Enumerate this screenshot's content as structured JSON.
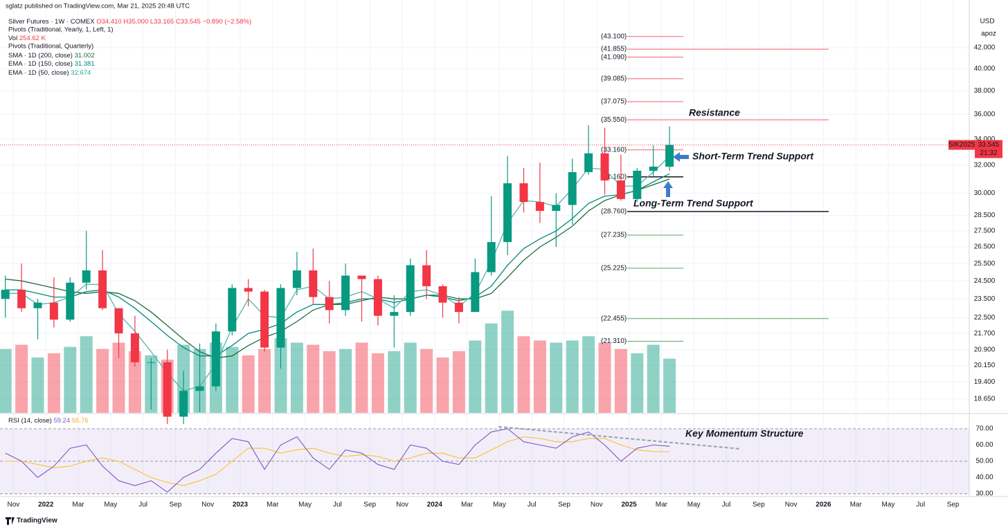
{
  "header": {
    "publisher": "sglatz published on TradingView.com, Mar 21, 2025 20:48 UTC",
    "symbol": "Silver Futures · 1W · COMEX",
    "ohlc_text": "O34.410 H35.000 L33.165 C33.545 −0.890 (−2.58%)",
    "pivots_yearly": "Pivots (Traditional, Yearly, 1, Left, 1)",
    "vol": "Vol",
    "vol_value": "254.62 K",
    "pivots_quarterly": "Pivots (Traditional, Quarterly)",
    "currency": "USD",
    "user": "apoz",
    "footer": "TradingView"
  },
  "chart_data": {
    "type": "candlestick",
    "log_scale": true,
    "grid": true,
    "up_color": "#089981",
    "down_color": "#f23645",
    "x": [
      "2021-10",
      "2021-11",
      "2021-12",
      "2022-01",
      "2022-02",
      "2022-03",
      "2022-04",
      "2022-05",
      "2022-06",
      "2022-07",
      "2022-08",
      "2022-09",
      "2022-10",
      "2022-11",
      "2022-12",
      "2023-01",
      "2023-02",
      "2023-03",
      "2023-04",
      "2023-05",
      "2023-06",
      "2023-07",
      "2023-08",
      "2023-09",
      "2023-10",
      "2023-11",
      "2023-12",
      "2024-01",
      "2024-02",
      "2024-03",
      "2024-04",
      "2024-05",
      "2024-06",
      "2024-07",
      "2024-08",
      "2024-09",
      "2024-10",
      "2024-11",
      "2024-12",
      "2025-01",
      "2025-02",
      "2025-03"
    ],
    "ohlc": [
      [
        23.5,
        24.8,
        22.5,
        24.0
      ],
      [
        24.0,
        25.5,
        22.8,
        23.0
      ],
      [
        23.0,
        23.5,
        21.4,
        23.3
      ],
      [
        23.3,
        24.7,
        22.0,
        22.4
      ],
      [
        22.4,
        24.7,
        22.3,
        24.4
      ],
      [
        24.4,
        27.5,
        24.0,
        25.1
      ],
      [
        25.1,
        26.3,
        22.9,
        23.0
      ],
      [
        23.0,
        23.0,
        20.5,
        21.7
      ],
      [
        21.7,
        22.6,
        20.1,
        20.3
      ],
      [
        20.3,
        20.5,
        18.2,
        20.3
      ],
      [
        20.3,
        20.9,
        17.6,
        17.9
      ],
      [
        17.9,
        19.9,
        17.6,
        19.0
      ],
      [
        19.0,
        21.2,
        18.1,
        19.2
      ],
      [
        19.2,
        22.2,
        19.0,
        21.8
      ],
      [
        21.8,
        24.3,
        21.6,
        24.1
      ],
      [
        24.1,
        24.6,
        23.1,
        23.9
      ],
      [
        23.9,
        24.0,
        20.8,
        21.0
      ],
      [
        21.0,
        24.3,
        20.0,
        24.1
      ],
      [
        24.1,
        26.2,
        23.7,
        25.1
      ],
      [
        25.1,
        26.4,
        23.2,
        23.6
      ],
      [
        23.6,
        24.5,
        22.2,
        22.9
      ],
      [
        22.9,
        25.5,
        22.6,
        24.8
      ],
      [
        24.8,
        24.8,
        22.3,
        24.6
      ],
      [
        24.6,
        24.8,
        22.1,
        22.6
      ],
      [
        22.6,
        23.7,
        21.0,
        22.8
      ],
      [
        22.8,
        25.8,
        22.6,
        25.4
      ],
      [
        25.4,
        26.3,
        23.5,
        24.2
      ],
      [
        24.2,
        24.3,
        22.5,
        23.3
      ],
      [
        23.3,
        23.6,
        22.2,
        22.8
      ],
      [
        22.8,
        25.8,
        22.8,
        25.0
      ],
      [
        25.0,
        29.8,
        24.8,
        26.8
      ],
      [
        26.8,
        32.7,
        26.0,
        30.7
      ],
      [
        30.7,
        31.8,
        28.7,
        29.4
      ],
      [
        29.4,
        32.2,
        28.0,
        28.8
      ],
      [
        28.8,
        30.0,
        26.5,
        29.2
      ],
      [
        29.2,
        32.5,
        27.9,
        31.5
      ],
      [
        31.5,
        35.1,
        31.3,
        32.9
      ],
      [
        32.9,
        34.9,
        29.9,
        30.9
      ],
      [
        30.9,
        32.8,
        29.5,
        29.6
      ],
      [
        29.6,
        31.8,
        29.4,
        31.6
      ],
      [
        31.6,
        33.5,
        31.2,
        31.9
      ],
      [
        31.9,
        35.0,
        31.6,
        33.545
      ]
    ],
    "ylim": [
      18.06,
      46.89
    ],
    "yticks": [
      {
        "value": 42,
        "label": "42.000"
      },
      {
        "value": 40,
        "label": "40.000"
      },
      {
        "value": 38,
        "label": "38.000"
      },
      {
        "value": 36,
        "label": "36.000"
      },
      {
        "value": 34,
        "label": "34.000"
      },
      {
        "value": 32,
        "label": "32.000"
      },
      {
        "value": 30,
        "label": "30.000"
      },
      {
        "value": 28.5,
        "label": "28.500"
      },
      {
        "value": 27.5,
        "label": "27.500"
      },
      {
        "value": 26.5,
        "label": "26.500"
      },
      {
        "value": 25.5,
        "label": "25.500"
      },
      {
        "value": 24.5,
        "label": "24.500"
      },
      {
        "value": 23.5,
        "label": "23.500"
      },
      {
        "value": 22.5,
        "label": "22.500"
      },
      {
        "value": 21.7,
        "label": "21.700"
      },
      {
        "value": 20.9,
        "label": "20.900"
      },
      {
        "value": 20.15,
        "label": "20.150"
      },
      {
        "value": 19.4,
        "label": "19.400"
      },
      {
        "value": 18.65,
        "label": "18.650"
      }
    ],
    "xticks": [
      {
        "value": "2021-11",
        "label": "Nov"
      },
      {
        "value": "2022-01",
        "label": "2022"
      },
      {
        "value": "2022-03",
        "label": "Mar"
      },
      {
        "value": "2022-05",
        "label": "May"
      },
      {
        "value": "2022-07",
        "label": "Jul"
      },
      {
        "value": "2022-09",
        "label": "Sep"
      },
      {
        "value": "2022-11",
        "label": "Nov"
      },
      {
        "value": "2023-01",
        "label": "2023"
      },
      {
        "value": "2023-03",
        "label": "Mar"
      },
      {
        "value": "2023-05",
        "label": "May"
      },
      {
        "value": "2023-07",
        "label": "Jul"
      },
      {
        "value": "2023-09",
        "label": "Sep"
      },
      {
        "value": "2023-11",
        "label": "Nov"
      },
      {
        "value": "2024-01",
        "label": "2024"
      },
      {
        "value": "2024-03",
        "label": "Mar"
      },
      {
        "value": "2024-05",
        "label": "May"
      },
      {
        "value": "2024-07",
        "label": "Jul"
      },
      {
        "value": "2024-09",
        "label": "Sep"
      },
      {
        "value": "2024-11",
        "label": "Nov"
      },
      {
        "value": "2025-01",
        "label": "2025"
      },
      {
        "value": "2025-03",
        "label": "Mar"
      },
      {
        "value": "2025-05",
        "label": "May"
      },
      {
        "value": "2025-07",
        "label": "Jul"
      },
      {
        "value": "2025-09",
        "label": "Sep"
      },
      {
        "value": "2025-11",
        "label": "Nov"
      },
      {
        "value": "2026-01",
        "label": "2026"
      },
      {
        "value": "2026-03",
        "label": "Mar"
      },
      {
        "value": "2026-05",
        "label": "May"
      },
      {
        "value": "2026-07",
        "label": "Jul"
      },
      {
        "value": "2026-09",
        "label": "Sep"
      }
    ],
    "series": [
      {
        "name": "SMA · 1D (200, close)",
        "color": "#1b6b3a",
        "values": [
          24.6,
          24.5,
          24.3,
          24.1,
          23.9,
          23.8,
          23.9,
          23.8,
          23.4,
          22.8,
          22.1,
          21.4,
          20.8,
          20.5,
          20.6,
          21.1,
          21.5,
          21.8,
          22.3,
          22.9,
          23.2,
          23.2,
          23.4,
          23.6,
          23.5,
          23.5,
          23.7,
          23.7,
          23.5,
          23.5,
          23.8,
          24.7,
          25.7,
          26.5,
          27.1,
          27.8,
          28.8,
          29.5,
          29.9,
          30.2,
          30.6,
          31.002
        ]
      },
      {
        "name": "EMA · 1D (150, close)",
        "color": "#00897b",
        "values": [
          24.0,
          24.0,
          23.8,
          23.6,
          23.6,
          23.9,
          24.0,
          23.6,
          23.0,
          22.3,
          21.6,
          21.0,
          20.6,
          20.6,
          21.1,
          21.7,
          21.9,
          22.2,
          22.8,
          23.2,
          23.2,
          23.3,
          23.5,
          23.5,
          23.3,
          23.5,
          23.7,
          23.6,
          23.4,
          23.6,
          24.2,
          25.4,
          26.4,
          27.0,
          27.5,
          28.3,
          29.3,
          29.8,
          29.9,
          30.2,
          30.8,
          31.381
        ]
      },
      {
        "name": "EMA · 1D (50, close)",
        "color": "#4db6ac",
        "values": [
          23.8,
          23.8,
          23.2,
          23.3,
          23.6,
          24.3,
          24.3,
          22.7,
          21.8,
          20.8,
          19.8,
          19.0,
          19.2,
          20.2,
          22.0,
          23.5,
          22.6,
          22.5,
          24.0,
          24.2,
          23.5,
          23.6,
          23.9,
          23.5,
          23.0,
          23.9,
          24.0,
          23.7,
          23.1,
          23.8,
          25.6,
          28.0,
          29.5,
          29.4,
          29.1,
          30.3,
          31.8,
          31.7,
          30.5,
          30.5,
          31.5,
          32.674
        ]
      }
    ],
    "volume": {
      "ylim": [
        0,
        650
      ],
      "values": [
        300,
        320,
        260,
        280,
        310,
        360,
        300,
        330,
        290,
        270,
        250,
        320,
        300,
        330,
        310,
        270,
        300,
        350,
        330,
        320,
        290,
        300,
        330,
        280,
        290,
        330,
        300,
        260,
        290,
        340,
        420,
        480,
        360,
        340,
        330,
        340,
        360,
        330,
        300,
        280,
        320,
        254.62
      ]
    },
    "pivots": [
      {
        "label": "(43.100)",
        "value": 43.1,
        "color": "#f23645",
        "group": "Quarterly"
      },
      {
        "label": "(41.855)",
        "value": 41.855,
        "color": "#f23645",
        "group": "Yearly"
      },
      {
        "label": "(41.090)",
        "value": 41.09,
        "color": "#f23645",
        "group": "Quarterly"
      },
      {
        "label": "(39.085)",
        "value": 39.085,
        "color": "#f23645",
        "group": "Quarterly"
      },
      {
        "label": "(37.075)",
        "value": 37.075,
        "color": "#f23645",
        "group": "Quarterly"
      },
      {
        "label": "(35.550)",
        "value": 35.55,
        "color": "#f23645",
        "group": "Yearly"
      },
      {
        "label": "(33.160)",
        "value": 33.16,
        "color": "#f23645",
        "group": "Quarterly"
      },
      {
        "label": "(31.160)",
        "value": 31.16,
        "color": "#131722",
        "group": "Quarterly"
      },
      {
        "label": "(28.760)",
        "value": 28.76,
        "color": "#131722",
        "group": "Yearly"
      },
      {
        "label": "(27.235)",
        "value": 27.235,
        "color": "#388e3c",
        "group": "Quarterly"
      },
      {
        "label": "(25.225)",
        "value": 25.225,
        "color": "#388e3c",
        "group": "Quarterly"
      },
      {
        "label": "(22.455)",
        "value": 22.455,
        "color": "#388e3c",
        "group": "Yearly"
      },
      {
        "label": "(21.310)",
        "value": 21.31,
        "color": "#388e3c",
        "group": "Quarterly"
      }
    ],
    "price_tag": {
      "symbol": "SIK2025",
      "value": 33.545,
      "countdown": "21:32",
      "color": "#f23645"
    },
    "annotations": [
      {
        "text": "Resistance"
      },
      {
        "text": "Short-Term Trend Support"
      },
      {
        "text": "Long-Term Trend Support"
      },
      {
        "text": "Key Momentum Structure"
      }
    ],
    "rsi": {
      "name": "RSI (14, close)",
      "ylim": [
        29.6,
        78.5
      ],
      "yticks": [
        {
          "value": 70,
          "label": "70.00"
        },
        {
          "value": 60,
          "label": "60.00"
        },
        {
          "value": 50,
          "label": "50.00"
        },
        {
          "value": 40,
          "label": "40.00"
        },
        {
          "value": 30,
          "label": "30.00"
        }
      ],
      "series": [
        {
          "name": "RSI",
          "color": "#7e57c2",
          "values": [
            55,
            50,
            40,
            47,
            58,
            60,
            47,
            38,
            35,
            38,
            31,
            40,
            45,
            55,
            64,
            62,
            45,
            60,
            65,
            52,
            45,
            57,
            55,
            48,
            45,
            60,
            58,
            50,
            48,
            60,
            68,
            70,
            62,
            60,
            58,
            65,
            68,
            60,
            50,
            58,
            60,
            59.24
          ]
        },
        {
          "name": "RSI MA",
          "color": "#fbc02d",
          "values": [
            50,
            50,
            48,
            46,
            47,
            50,
            52,
            50,
            45,
            40,
            37,
            35,
            38,
            42,
            50,
            58,
            58,
            55,
            57,
            58,
            55,
            53,
            54,
            53,
            50,
            52,
            55,
            55,
            52,
            52,
            57,
            62,
            65,
            64,
            62,
            62,
            64,
            64,
            60,
            57,
            56,
            55.76
          ]
        }
      ]
    }
  }
}
